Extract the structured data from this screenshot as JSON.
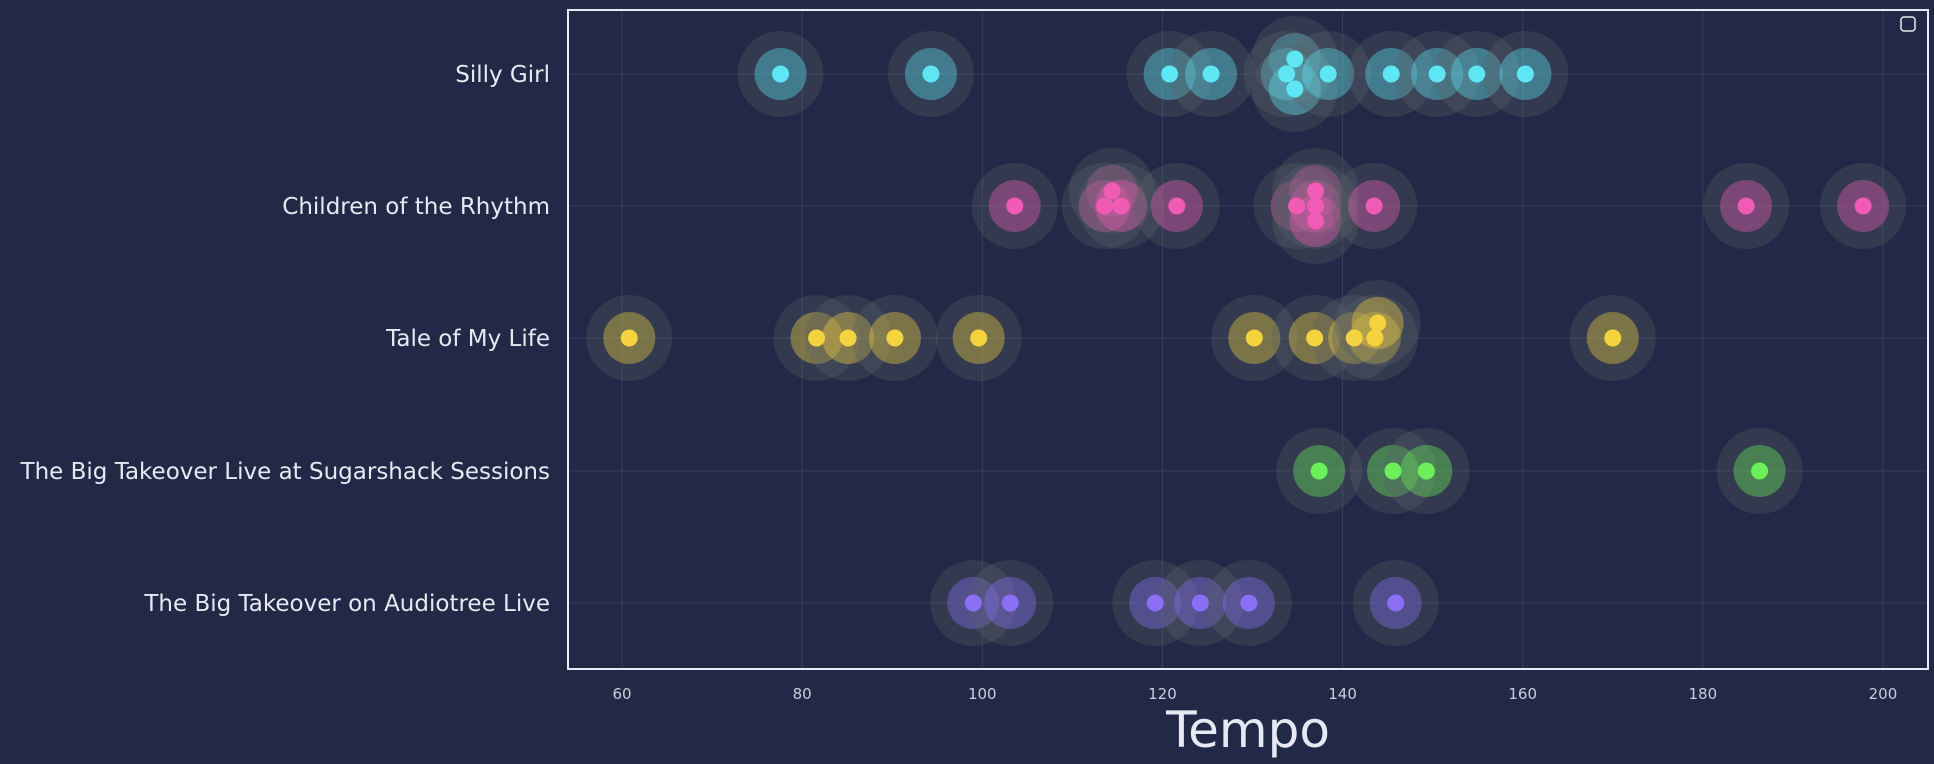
{
  "chart_data": {
    "type": "scatter",
    "title": "",
    "xlabel": "Tempo",
    "ylabel": "",
    "xlim": [
      54,
      205
    ],
    "xticks": [
      "60",
      "80",
      "100",
      "120",
      "140",
      "160",
      "180",
      "200"
    ],
    "grid": true,
    "legend": "top-right (empty)",
    "categories": [
      "Silly Girl",
      "Children of the Rhythm",
      "Tale of My Life",
      "The Big Takeover Live at Sugarshack Sessions",
      "The Big Takeover on Audiotree Live"
    ],
    "series": [
      {
        "category": "Silly Girl",
        "color": "#5ee6f5",
        "points": [
          {
            "x": 77.6,
            "dy": 0
          },
          {
            "x": 94.3,
            "dy": 0
          },
          {
            "x": 120.8,
            "dy": 0
          },
          {
            "x": 125.4,
            "dy": 0
          },
          {
            "x": 134.7,
            "dy": 1
          },
          {
            "x": 133.8,
            "dy": 0
          },
          {
            "x": 134.7,
            "dy": -1
          },
          {
            "x": 138.4,
            "dy": 0
          },
          {
            "x": 145.4,
            "dy": 0
          },
          {
            "x": 150.5,
            "dy": 0
          },
          {
            "x": 154.9,
            "dy": 0
          },
          {
            "x": 160.3,
            "dy": 0
          }
        ]
      },
      {
        "category": "Children of the Rhythm",
        "color": "#f05bb5",
        "points": [
          {
            "x": 103.6,
            "dy": 0
          },
          {
            "x": 114.4,
            "dy": 1
          },
          {
            "x": 113.6,
            "dy": 0
          },
          {
            "x": 115.4,
            "dy": 0
          },
          {
            "x": 121.6,
            "dy": 0
          },
          {
            "x": 134.9,
            "dy": 0
          },
          {
            "x": 137.0,
            "dy": 1
          },
          {
            "x": 137.0,
            "dy": 0
          },
          {
            "x": 137.0,
            "dy": -1
          },
          {
            "x": 143.5,
            "dy": 0
          },
          {
            "x": 184.8,
            "dy": 0
          },
          {
            "x": 197.8,
            "dy": 0
          }
        ]
      },
      {
        "category": "Tale of My Life",
        "color": "#f5d33f",
        "points": [
          {
            "x": 60.8,
            "dy": 0
          },
          {
            "x": 81.6,
            "dy": 0
          },
          {
            "x": 85.1,
            "dy": 0
          },
          {
            "x": 90.3,
            "dy": 0
          },
          {
            "x": 99.6,
            "dy": 0
          },
          {
            "x": 130.2,
            "dy": 0
          },
          {
            "x": 136.9,
            "dy": 0
          },
          {
            "x": 141.3,
            "dy": 0
          },
          {
            "x": 143.6,
            "dy": 0
          },
          {
            "x": 143.9,
            "dy": 1
          },
          {
            "x": 170.0,
            "dy": 0
          }
        ]
      },
      {
        "category": "The Big Takeover Live at Sugarshack Sessions",
        "color": "#6bf05a",
        "points": [
          {
            "x": 137.4,
            "dy": 0
          },
          {
            "x": 145.6,
            "dy": 0
          },
          {
            "x": 149.3,
            "dy": 0
          },
          {
            "x": 186.3,
            "dy": 0
          }
        ]
      },
      {
        "category": "The Big Takeover on Audiotree Live",
        "color": "#8a6ff5",
        "points": [
          {
            "x": 99.0,
            "dy": 0
          },
          {
            "x": 103.1,
            "dy": 0
          },
          {
            "x": 119.2,
            "dy": 0
          },
          {
            "x": 124.2,
            "dy": 0
          },
          {
            "x": 129.6,
            "dy": 0
          },
          {
            "x": 145.9,
            "dy": 0
          }
        ]
      }
    ]
  },
  "colors": {
    "background": "#212946",
    "halo": "#5a5f68"
  }
}
